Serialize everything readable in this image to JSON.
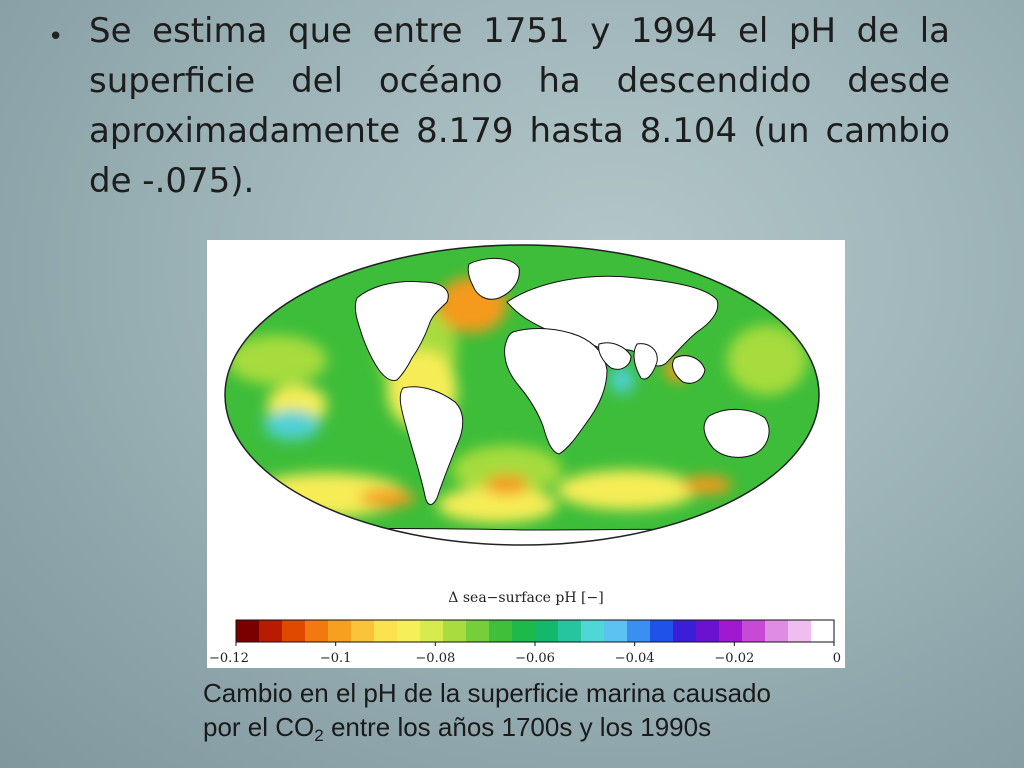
{
  "slide": {
    "bullet_marker": "•",
    "bullet_text": "Se estima que entre 1751 y 1994 el pH de la superficie del océano ha descendido desde aproximadamente 8.179 hasta 8.104 (un cambio de -.075)."
  },
  "figure": {
    "colorbar_title": "Δ sea−surface pH [−]",
    "colorbar_ticks": [
      "−0.12",
      "−0.1",
      "−0.08",
      "−0.06",
      "−0.04",
      "−0.02",
      "0"
    ],
    "colorbar_colors": [
      "#7a0000",
      "#b81c00",
      "#e04a00",
      "#f07a10",
      "#f7a020",
      "#fbc33a",
      "#fde24f",
      "#f6f058",
      "#d6ec4e",
      "#a7dd3e",
      "#74cf3a",
      "#3fbf3a",
      "#1db94a",
      "#14b86a",
      "#27c4a0",
      "#4fd7d6",
      "#5cc2f0",
      "#3a8ff0",
      "#1f52e8",
      "#3b1fd8",
      "#6a12d0",
      "#a018d0",
      "#c74ad6",
      "#de8ce4",
      "#efbdf0",
      "#ffffff"
    ],
    "map_colors": {
      "ocean_green": "#3dbd3a",
      "ocean_light": "#a6dc3e",
      "ocean_yellow": "#f6ed56",
      "ocean_orange": "#f59a1f",
      "ocean_cyan": "#4fd0d6",
      "land": "#ffffff"
    }
  },
  "caption": {
    "line1": "Cambio en el pH de la superficie marina causado",
    "line2_pre": "por el CO",
    "line2_sub": "2",
    "line2_post": " entre los años 1700s y los 1990s"
  }
}
